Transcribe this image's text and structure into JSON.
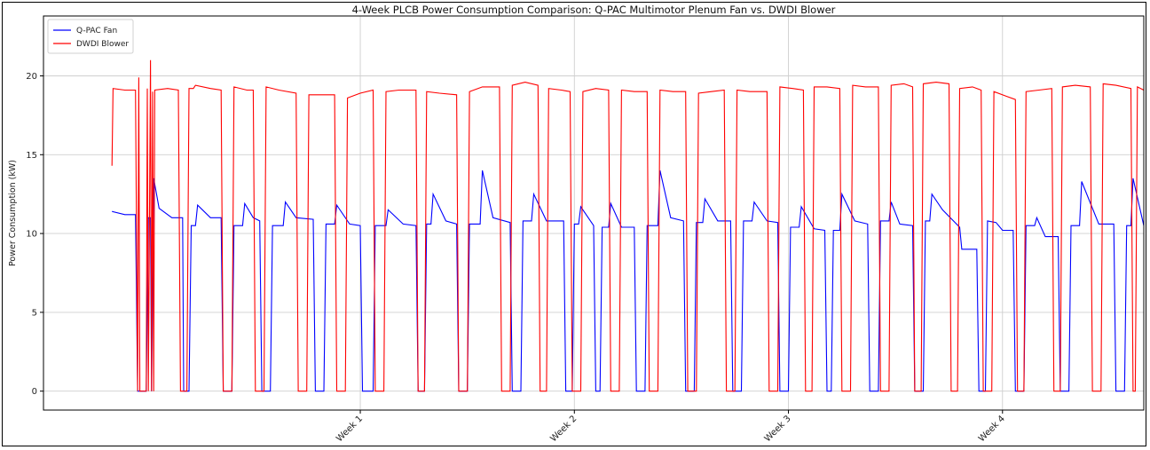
{
  "chart_data": {
    "type": "line",
    "title": "4-Week PLCB Power Consumption Comparison: Q-PAC Multimotor Plenum Fan vs. DWDI Blower",
    "xlabel": "",
    "ylabel": "Power Consumption (kW)",
    "ylim": [
      -1.2,
      23.8
    ],
    "xlim": [
      -0.48,
      4.66
    ],
    "yticks": [
      0,
      5,
      10,
      15,
      20
    ],
    "xticks": [
      {
        "value": 1,
        "label": "Week 1"
      },
      {
        "value": 2,
        "label": "Week 2"
      },
      {
        "value": 3,
        "label": "Week 3"
      },
      {
        "value": 4,
        "label": "Week 4"
      }
    ],
    "grid": true,
    "legend_position": "top-left",
    "series": [
      {
        "name": "Q-PAC Fan",
        "color": "#0000ff",
        "points": [
          [
            -0.16,
            11.4
          ],
          [
            -0.1,
            11.2
          ],
          [
            -0.05,
            11.2
          ],
          [
            -0.04,
            0
          ],
          [
            0.0,
            0
          ],
          [
            0.01,
            11.0
          ],
          [
            0.02,
            11.0
          ],
          [
            0.025,
            0
          ],
          [
            0.035,
            13.5
          ],
          [
            0.06,
            11.6
          ],
          [
            0.12,
            11.0
          ],
          [
            0.17,
            11.0
          ],
          [
            0.175,
            0
          ],
          [
            0.2,
            0
          ],
          [
            0.21,
            10.5
          ],
          [
            0.23,
            10.5
          ],
          [
            0.24,
            11.8
          ],
          [
            0.3,
            11.0
          ],
          [
            0.35,
            11.0
          ],
          [
            0.36,
            0
          ],
          [
            0.4,
            0
          ],
          [
            0.41,
            10.5
          ],
          [
            0.45,
            10.5
          ],
          [
            0.46,
            11.9
          ],
          [
            0.5,
            11.0
          ],
          [
            0.53,
            10.8
          ],
          [
            0.54,
            0
          ],
          [
            0.58,
            0
          ],
          [
            0.59,
            10.5
          ],
          [
            0.64,
            10.5
          ],
          [
            0.65,
            12.0
          ],
          [
            0.7,
            11.0
          ],
          [
            0.78,
            10.9
          ],
          [
            0.79,
            0
          ],
          [
            0.83,
            0
          ],
          [
            0.84,
            10.6
          ],
          [
            0.88,
            10.6
          ],
          [
            0.89,
            11.8
          ],
          [
            0.95,
            10.6
          ],
          [
            1.0,
            10.5
          ],
          [
            1.01,
            0
          ],
          [
            1.06,
            0
          ],
          [
            1.07,
            10.5
          ],
          [
            1.12,
            10.5
          ],
          [
            1.13,
            11.5
          ],
          [
            1.2,
            10.6
          ],
          [
            1.26,
            10.5
          ],
          [
            1.27,
            0
          ],
          [
            1.3,
            0
          ],
          [
            1.31,
            10.6
          ],
          [
            1.33,
            10.6
          ],
          [
            1.34,
            12.5
          ],
          [
            1.4,
            10.8
          ],
          [
            1.45,
            10.6
          ],
          [
            1.46,
            0
          ],
          [
            1.5,
            0
          ],
          [
            1.51,
            10.6
          ],
          [
            1.56,
            10.6
          ],
          [
            1.57,
            14.0
          ],
          [
            1.62,
            11.0
          ],
          [
            1.7,
            10.7
          ],
          [
            1.71,
            0
          ],
          [
            1.75,
            0
          ],
          [
            1.76,
            10.8
          ],
          [
            1.8,
            10.8
          ],
          [
            1.81,
            12.5
          ],
          [
            1.87,
            10.8
          ],
          [
            1.95,
            10.8
          ],
          [
            1.96,
            0
          ],
          [
            1.99,
            0
          ],
          [
            2.0,
            10.6
          ],
          [
            2.02,
            10.6
          ],
          [
            2.03,
            11.7
          ],
          [
            2.09,
            10.5
          ],
          [
            2.1,
            0
          ],
          [
            2.12,
            0
          ],
          [
            2.13,
            10.4
          ],
          [
            2.16,
            10.4
          ],
          [
            2.17,
            11.9
          ],
          [
            2.22,
            10.4
          ],
          [
            2.28,
            10.4
          ],
          [
            2.29,
            0
          ],
          [
            2.33,
            0
          ],
          [
            2.34,
            10.5
          ],
          [
            2.39,
            10.5
          ],
          [
            2.4,
            14.0
          ],
          [
            2.45,
            11.0
          ],
          [
            2.51,
            10.8
          ],
          [
            2.52,
            0
          ],
          [
            2.56,
            0
          ],
          [
            2.57,
            10.7
          ],
          [
            2.6,
            10.7
          ],
          [
            2.61,
            12.2
          ],
          [
            2.67,
            10.8
          ],
          [
            2.73,
            10.8
          ],
          [
            2.74,
            0
          ],
          [
            2.78,
            0
          ],
          [
            2.79,
            10.8
          ],
          [
            2.83,
            10.8
          ],
          [
            2.84,
            12.0
          ],
          [
            2.9,
            10.8
          ],
          [
            2.95,
            10.7
          ],
          [
            2.96,
            0
          ],
          [
            3.0,
            0
          ],
          [
            3.01,
            10.4
          ],
          [
            3.05,
            10.4
          ],
          [
            3.06,
            11.7
          ],
          [
            3.12,
            10.3
          ],
          [
            3.17,
            10.2
          ],
          [
            3.18,
            0
          ],
          [
            3.2,
            0
          ],
          [
            3.21,
            10.2
          ],
          [
            3.24,
            10.2
          ],
          [
            3.25,
            12.5
          ],
          [
            3.31,
            10.8
          ],
          [
            3.37,
            10.6
          ],
          [
            3.38,
            0
          ],
          [
            3.42,
            0
          ],
          [
            3.43,
            10.8
          ],
          [
            3.47,
            10.8
          ],
          [
            3.48,
            12.0
          ],
          [
            3.52,
            10.6
          ],
          [
            3.58,
            10.5
          ],
          [
            3.59,
            0
          ],
          [
            3.63,
            0
          ],
          [
            3.64,
            10.8
          ],
          [
            3.66,
            10.8
          ],
          [
            3.67,
            12.5
          ],
          [
            3.72,
            11.5
          ],
          [
            3.8,
            10.4
          ],
          [
            3.81,
            9.0
          ],
          [
            3.88,
            9.0
          ],
          [
            3.89,
            0
          ],
          [
            3.92,
            0
          ],
          [
            3.93,
            10.8
          ],
          [
            3.97,
            10.7
          ],
          [
            4.0,
            10.2
          ],
          [
            4.05,
            10.2
          ],
          [
            4.06,
            0
          ],
          [
            4.1,
            0
          ],
          [
            4.11,
            10.5
          ],
          [
            4.15,
            10.5
          ],
          [
            4.16,
            11.0
          ],
          [
            4.2,
            9.8
          ],
          [
            4.26,
            9.8
          ],
          [
            4.27,
            0
          ],
          [
            4.31,
            0
          ],
          [
            4.32,
            10.5
          ],
          [
            4.36,
            10.5
          ],
          [
            4.37,
            13.3
          ],
          [
            4.45,
            10.6
          ],
          [
            4.52,
            10.6
          ],
          [
            4.53,
            0
          ],
          [
            4.57,
            0
          ],
          [
            4.58,
            10.5
          ],
          [
            4.6,
            10.5
          ],
          [
            4.61,
            13.5
          ],
          [
            4.66,
            10.5
          ]
        ]
      },
      {
        "name": "DWDI Blower",
        "color": "#ff0000",
        "points": [
          [
            -0.16,
            14.3
          ],
          [
            -0.155,
            19.2
          ],
          [
            -0.1,
            19.1
          ],
          [
            -0.05,
            19.1
          ],
          [
            -0.04,
            0
          ],
          [
            -0.035,
            19.9
          ],
          [
            -0.03,
            0
          ],
          [
            0.0,
            0
          ],
          [
            0.005,
            19.2
          ],
          [
            0.01,
            0
          ],
          [
            0.02,
            21.0
          ],
          [
            0.025,
            0
          ],
          [
            0.03,
            19.0
          ],
          [
            0.035,
            0
          ],
          [
            0.04,
            19.1
          ],
          [
            0.1,
            19.2
          ],
          [
            0.15,
            19.1
          ],
          [
            0.16,
            0
          ],
          [
            0.19,
            0
          ],
          [
            0.2,
            19.2
          ],
          [
            0.22,
            19.2
          ],
          [
            0.23,
            19.4
          ],
          [
            0.3,
            19.2
          ],
          [
            0.35,
            19.1
          ],
          [
            0.36,
            0
          ],
          [
            0.4,
            0
          ],
          [
            0.41,
            19.3
          ],
          [
            0.47,
            19.1
          ],
          [
            0.5,
            19.1
          ],
          [
            0.51,
            0
          ],
          [
            0.55,
            0
          ],
          [
            0.56,
            19.3
          ],
          [
            0.62,
            19.1
          ],
          [
            0.7,
            18.9
          ],
          [
            0.71,
            0
          ],
          [
            0.75,
            0
          ],
          [
            0.76,
            18.8
          ],
          [
            0.82,
            18.8
          ],
          [
            0.88,
            18.8
          ],
          [
            0.89,
            0
          ],
          [
            0.93,
            0
          ],
          [
            0.94,
            18.6
          ],
          [
            1.0,
            18.9
          ],
          [
            1.06,
            19.1
          ],
          [
            1.07,
            0
          ],
          [
            1.11,
            0
          ],
          [
            1.12,
            19.0
          ],
          [
            1.18,
            19.1
          ],
          [
            1.26,
            19.1
          ],
          [
            1.27,
            0
          ],
          [
            1.3,
            0
          ],
          [
            1.31,
            19.0
          ],
          [
            1.37,
            18.9
          ],
          [
            1.45,
            18.8
          ],
          [
            1.46,
            0
          ],
          [
            1.5,
            0
          ],
          [
            1.51,
            19.0
          ],
          [
            1.57,
            19.3
          ],
          [
            1.65,
            19.3
          ],
          [
            1.66,
            0
          ],
          [
            1.7,
            0
          ],
          [
            1.71,
            19.4
          ],
          [
            1.77,
            19.6
          ],
          [
            1.83,
            19.4
          ],
          [
            1.84,
            0
          ],
          [
            1.87,
            0
          ],
          [
            1.88,
            19.2
          ],
          [
            1.94,
            19.1
          ],
          [
            1.98,
            19.0
          ],
          [
            1.99,
            0
          ],
          [
            2.03,
            0
          ],
          [
            2.04,
            19.0
          ],
          [
            2.1,
            19.2
          ],
          [
            2.16,
            19.1
          ],
          [
            2.17,
            0
          ],
          [
            2.21,
            0
          ],
          [
            2.22,
            19.1
          ],
          [
            2.28,
            19.0
          ],
          [
            2.34,
            19.0
          ],
          [
            2.35,
            0
          ],
          [
            2.39,
            0
          ],
          [
            2.4,
            19.1
          ],
          [
            2.46,
            19.0
          ],
          [
            2.52,
            19.0
          ],
          [
            2.53,
            0
          ],
          [
            2.57,
            0
          ],
          [
            2.58,
            18.9
          ],
          [
            2.64,
            19.0
          ],
          [
            2.7,
            19.1
          ],
          [
            2.71,
            0
          ],
          [
            2.75,
            0
          ],
          [
            2.76,
            19.1
          ],
          [
            2.82,
            19.0
          ],
          [
            2.9,
            19.0
          ],
          [
            2.91,
            0
          ],
          [
            2.95,
            0
          ],
          [
            2.96,
            19.3
          ],
          [
            3.02,
            19.2
          ],
          [
            3.07,
            19.1
          ],
          [
            3.08,
            0
          ],
          [
            3.11,
            0
          ],
          [
            3.12,
            19.3
          ],
          [
            3.18,
            19.3
          ],
          [
            3.24,
            19.2
          ],
          [
            3.25,
            0
          ],
          [
            3.29,
            0
          ],
          [
            3.3,
            19.4
          ],
          [
            3.36,
            19.3
          ],
          [
            3.42,
            19.3
          ],
          [
            3.43,
            0
          ],
          [
            3.47,
            0
          ],
          [
            3.48,
            19.4
          ],
          [
            3.54,
            19.5
          ],
          [
            3.58,
            19.3
          ],
          [
            3.59,
            0
          ],
          [
            3.62,
            0
          ],
          [
            3.63,
            19.5
          ],
          [
            3.69,
            19.6
          ],
          [
            3.75,
            19.5
          ],
          [
            3.76,
            0
          ],
          [
            3.79,
            0
          ],
          [
            3.8,
            19.2
          ],
          [
            3.86,
            19.3
          ],
          [
            3.9,
            19.1
          ],
          [
            3.91,
            0
          ],
          [
            3.95,
            0
          ],
          [
            3.96,
            19.0
          ],
          [
            4.02,
            18.7
          ],
          [
            4.06,
            18.5
          ],
          [
            4.07,
            0
          ],
          [
            4.1,
            0
          ],
          [
            4.11,
            19.0
          ],
          [
            4.17,
            19.1
          ],
          [
            4.23,
            19.2
          ],
          [
            4.24,
            0
          ],
          [
            4.27,
            0
          ],
          [
            4.28,
            19.3
          ],
          [
            4.34,
            19.4
          ],
          [
            4.41,
            19.3
          ],
          [
            4.42,
            0
          ],
          [
            4.46,
            0
          ],
          [
            4.47,
            19.5
          ],
          [
            4.53,
            19.4
          ],
          [
            4.6,
            19.2
          ],
          [
            4.61,
            0
          ],
          [
            4.62,
            0
          ],
          [
            4.63,
            19.3
          ],
          [
            4.66,
            19.1
          ]
        ]
      }
    ]
  }
}
